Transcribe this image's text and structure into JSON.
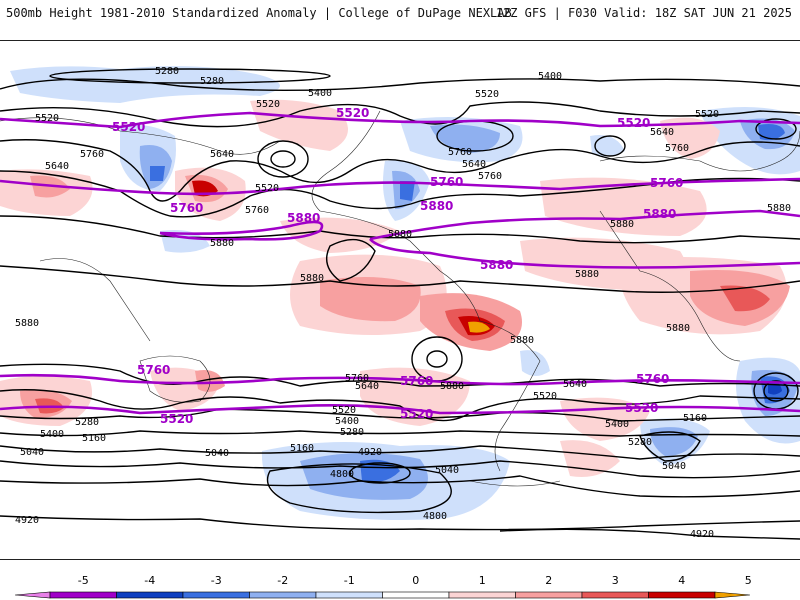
{
  "header": {
    "title": "500mb Height 1981-2010 Standardized Anomaly | College of DuPage NEXLAB",
    "valid": "12Z GFS | F030 Valid: 18Z SAT JUN 21 2025"
  },
  "contour_labels": {
    "l5280a": "5280",
    "l5280b": "5280",
    "l5400a": "5400",
    "l5400b": "5400",
    "l5520a": "5520",
    "l5520b": "5520",
    "l5520c": "5520",
    "l5520d": "5520",
    "l5520e": "5520",
    "l5640a": "5640",
    "l5640b": "5640",
    "l5640c": "5640",
    "l5640d": "5640",
    "l5760a": "5760",
    "l5760b": "5760",
    "l5760c": "5760",
    "l5760d": "5760",
    "l5760e": "5760",
    "l5880a": "5880",
    "l5880b": "5880",
    "l5880c": "5880",
    "l5880d": "5880",
    "l5880e": "5880",
    "l5880f": "5880",
    "l5880g": "5880",
    "l5880h": "5880",
    "s5760a": "5760",
    "s5640a": "5640",
    "s5400a": "5400",
    "s5280a": "5280",
    "s5160a": "5160",
    "s5040a": "5040",
    "s5520a": "5520",
    "s5400b": "5400",
    "s5280b": "5280",
    "s5160b": "5160",
    "s5040b": "5040",
    "s4920a": "4920",
    "s4800a": "4800",
    "s4800b": "4800",
    "s4920b": "4920",
    "s4920c": "4920",
    "s5640b": "5640",
    "s5520b": "5520",
    "s5400c": "5400",
    "s5160c": "5160",
    "s5280c": "5280",
    "s5040c": "5040",
    "s5040d": "5040",
    "s5880a": "5880",
    "s5880b": "5880"
  },
  "highlight_labels": {
    "p5520a": "5520",
    "p5520b": "5520",
    "p5520c": "5520",
    "p5760a": "5760",
    "p5760b": "5760",
    "p5760c": "5760",
    "p5880a": "5880",
    "p5880b": "5880",
    "p5880c": "5880",
    "p5880d": "5880",
    "p5760d": "5760",
    "p5760e": "5760",
    "p5760f": "5760",
    "p5520d": "5520",
    "p5520e": "5520",
    "p5520f": "5520"
  },
  "colorbar": {
    "ticks": [
      "-5",
      "-4",
      "-3",
      "-2",
      "-1",
      "0",
      "1",
      "2",
      "3",
      "4",
      "5"
    ],
    "colors": [
      "#e880e8",
      "#a000c8",
      "#1040c0",
      "#3a6fe0",
      "#8fb0f0",
      "#cfe0fb",
      "#ffffff",
      "#fcd4d4",
      "#f7a0a0",
      "#e85858",
      "#c80000",
      "#f0a000"
    ]
  },
  "anomaly_palette": {
    "neg3": "#3a6fe0",
    "neg2": "#8fb0f0",
    "neg1": "#cfe0fb",
    "pos1": "#fcd4d4",
    "pos2": "#f7a0a0",
    "pos3": "#e85858",
    "pos4": "#c80000",
    "pos5": "#f0a000"
  }
}
